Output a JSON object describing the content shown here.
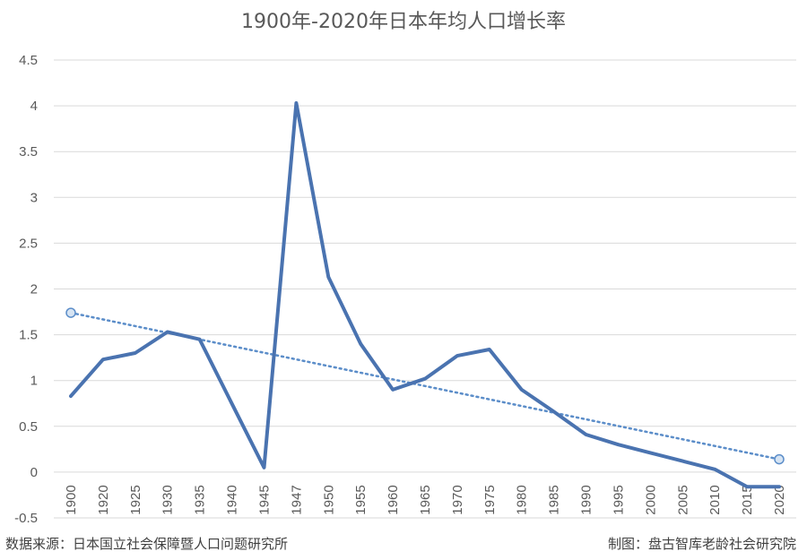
{
  "chart_data": {
    "type": "line",
    "title": "1900年-2020年日本年均人口增长率",
    "x": [
      "1900",
      "1920",
      "1925",
      "1930",
      "1935",
      "1940",
      "1945",
      "1947",
      "1950",
      "1955",
      "1960",
      "1965",
      "1970",
      "1975",
      "1980",
      "1985",
      "1990",
      "1995",
      "2000",
      "2005",
      "2010",
      "2015",
      "2020"
    ],
    "series": [
      {
        "values": [
          0.83,
          1.23,
          1.3,
          1.53,
          1.45,
          0.75,
          0.05,
          4.03,
          2.13,
          1.4,
          0.9,
          1.02,
          1.27,
          1.34,
          0.9,
          0.66,
          0.41,
          0.3,
          0.21,
          0.12,
          0.03,
          -0.16,
          -0.16
        ]
      }
    ],
    "trendline": {
      "type": "linear",
      "style": "dotted",
      "start": 1.74,
      "end": 0.14
    },
    "ylim": [
      -0.5,
      4.5
    ],
    "yticks": [
      "4.5",
      "4",
      "3.5",
      "3",
      "2.5",
      "2",
      "1.5",
      "1",
      "0.5",
      "0",
      "-0.5"
    ],
    "grid": true,
    "line_color": "#4a73b0",
    "trend_color": "#5b8dc9"
  },
  "source_note": "数据来源：日本国立社会保障暨人口问题研究所",
  "maker_note": "制图：盘古智库老龄社会研究院"
}
